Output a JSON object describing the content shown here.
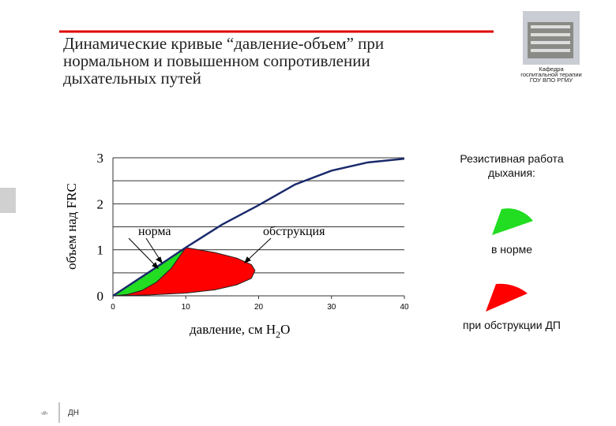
{
  "header": {
    "title": [
      "Динамические кривые “давление-объем” при",
      "нормальном и повышенном  сопротивлении",
      "дыхательных путей"
    ],
    "logo_caption": [
      "Кафедра",
      "госпитальной терапии",
      "ГОУ ВПО РГМУ"
    ]
  },
  "chart_data": {
    "type": "line",
    "ylabel": "объем над FRC",
    "xlabel": [
      "давление, см H",
      "2",
      "O"
    ],
    "xlim": [
      0,
      40
    ],
    "ylim": [
      0,
      3
    ],
    "xticks": [
      0,
      10,
      20,
      30,
      40
    ],
    "yticks": [
      0,
      1,
      2,
      3
    ],
    "yminor": [
      0.5,
      1.5,
      2.5
    ],
    "grid": true,
    "annotations": [
      "норма",
      "обструкция"
    ],
    "series": [
      {
        "color": "#ff0000",
        "fill": true,
        "x": [
          0,
          5,
          10,
          14,
          17,
          19,
          19.5,
          19,
          17,
          14,
          10,
          8,
          6,
          4,
          2,
          0
        ],
        "values": [
          0,
          0.02,
          0.06,
          0.13,
          0.24,
          0.38,
          0.55,
          0.68,
          0.82,
          0.94,
          1.05,
          0.6,
          0.3,
          0.12,
          0.03,
          0
        ]
      },
      {
        "color": "#22dd22",
        "fill": true,
        "x": [
          0,
          10,
          8,
          6,
          4,
          2,
          0
        ],
        "values": [
          0,
          1.05,
          0.6,
          0.3,
          0.12,
          0.03,
          0
        ]
      },
      {
        "color": "#1a2a6c",
        "fill": false,
        "x": [
          0,
          5,
          10,
          15,
          20,
          25,
          30,
          35,
          40
        ],
        "values": [
          0,
          0.52,
          1.05,
          1.55,
          1.97,
          2.42,
          2.72,
          2.9,
          2.98
        ]
      }
    ]
  },
  "side": {
    "title": [
      "Резистивная работа",
      "дыхания:"
    ],
    "normal": "в норме",
    "obstruction": "при обструкции ДП"
  },
  "footer": {
    "slide_number": "‹#›",
    "text": "ДН"
  }
}
